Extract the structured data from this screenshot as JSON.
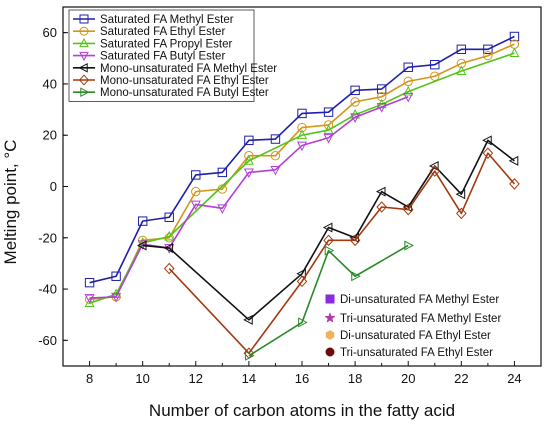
{
  "chart_data": {
    "type": "line",
    "xlabel": "Number of carbon atoms in the fatty acid",
    "ylabel": "Melting point, °C",
    "xlim": [
      7,
      25
    ],
    "ylim": [
      -70,
      70
    ],
    "xticks": [
      8,
      10,
      12,
      14,
      16,
      18,
      20,
      22,
      24
    ],
    "yticks": [
      -60,
      -40,
      -20,
      0,
      20,
      40,
      60
    ],
    "xtick_labels": [
      "8",
      "10",
      "12",
      "14",
      "16",
      "18",
      "20",
      "22",
      "24"
    ],
    "ytick_labels": [
      "-60",
      "-40",
      "-20",
      "0",
      "20",
      "40",
      "60"
    ],
    "grid": false,
    "series": [
      {
        "name": "Saturated FA Methyl Ester",
        "color": "#1f1fa8",
        "marker": "square",
        "points": [
          [
            8,
            -37.5
          ],
          [
            9,
            -35
          ],
          [
            10,
            -13.5
          ],
          [
            11,
            -12
          ],
          [
            12,
            4.5
          ],
          [
            13,
            5.5
          ],
          [
            14,
            18
          ],
          [
            15,
            18.5
          ],
          [
            16,
            28.5
          ],
          [
            17,
            29
          ],
          [
            18,
            37.5
          ],
          [
            19,
            38
          ],
          [
            20,
            46.5
          ],
          [
            21,
            47.5
          ],
          [
            22,
            53.5
          ],
          [
            23,
            53.5
          ],
          [
            24,
            58.5
          ]
        ]
      },
      {
        "name": "Saturated FA Ethyl Ester",
        "color": "#d4951a",
        "marker": "circle",
        "points": [
          [
            8,
            -44
          ],
          [
            9,
            -43
          ],
          [
            10,
            -21
          ],
          [
            11,
            -20
          ],
          [
            12,
            -2
          ],
          [
            13,
            -1
          ],
          [
            14,
            12
          ],
          [
            15,
            12
          ],
          [
            16,
            23
          ],
          [
            17,
            24
          ],
          [
            18,
            33
          ],
          [
            19,
            35
          ],
          [
            20,
            41
          ],
          [
            21,
            43
          ],
          [
            22,
            48
          ],
          [
            23,
            51
          ],
          [
            24,
            55.5
          ]
        ]
      },
      {
        "name": "Saturated FA Propyl Ester",
        "color": "#52c41a",
        "marker": "triangle-up",
        "points": [
          [
            8,
            -45.5
          ],
          [
            9,
            -42
          ],
          [
            10,
            -22
          ],
          [
            11,
            -19.5
          ],
          [
            14,
            10
          ],
          [
            16,
            20
          ],
          [
            17,
            22
          ],
          [
            18,
            28
          ],
          [
            19,
            32
          ],
          [
            20,
            37
          ],
          [
            22,
            45
          ],
          [
            24,
            52
          ]
        ]
      },
      {
        "name": "Saturated FA Butyl Ester",
        "color": "#b23fd6",
        "marker": "triangle-down",
        "points": [
          [
            8,
            -43.5
          ],
          [
            9,
            -43
          ],
          [
            10,
            -22.5
          ],
          [
            11,
            -24
          ],
          [
            12,
            -7
          ],
          [
            13,
            -8.5
          ],
          [
            14,
            5.5
          ],
          [
            15,
            6.5
          ],
          [
            16,
            16
          ],
          [
            17,
            19
          ],
          [
            18,
            27
          ],
          [
            19,
            31
          ],
          [
            20,
            35
          ]
        ]
      },
      {
        "name": "Mono-unsaturated FA Methyl Ester",
        "color": "#111111",
        "marker": "triangle-left",
        "points": [
          [
            10,
            -23
          ],
          [
            11,
            -24
          ],
          [
            14,
            -52
          ],
          [
            16,
            -34
          ],
          [
            17,
            -16
          ],
          [
            18,
            -20
          ],
          [
            19,
            -2
          ],
          [
            20,
            -8
          ],
          [
            21,
            8
          ],
          [
            22,
            -3
          ],
          [
            23,
            18
          ],
          [
            24,
            10
          ]
        ]
      },
      {
        "name": "Mono-unsaturated FA Ethyl Ester",
        "color": "#a33a10",
        "marker": "diamond",
        "points": [
          [
            11,
            -32
          ],
          [
            14,
            -65
          ],
          [
            16,
            -37
          ],
          [
            17,
            -21
          ],
          [
            18,
            -21
          ],
          [
            19,
            -8
          ],
          [
            20,
            -9
          ],
          [
            21,
            6
          ],
          [
            22,
            -10.5
          ],
          [
            23,
            13
          ],
          [
            24,
            1
          ]
        ]
      },
      {
        "name": "Mono-unsaturated FA Butyl Ester",
        "color": "#2a8a2a",
        "marker": "triangle-right",
        "points": [
          [
            14,
            -66
          ],
          [
            16,
            -53
          ],
          [
            17,
            -25
          ],
          [
            18,
            -35
          ],
          [
            20,
            -23
          ]
        ]
      }
    ],
    "scatter_series": [
      {
        "name": "Di-unsaturated FA Methyl Ester",
        "color": "#8a2be2",
        "marker": "square-filled",
        "points": []
      },
      {
        "name": "Tri-unsaturated FA Methyl Ester",
        "color": "#b13aa8",
        "marker": "star-filled",
        "points": []
      },
      {
        "name": "Di-unsaturated FA Ethyl Ester",
        "color": "#f0b25a",
        "marker": "hexagon-filled",
        "points": []
      },
      {
        "name": "Tri-unsaturated FA Ethyl Ester",
        "color": "#6b0d0d",
        "marker": "circle-filled",
        "points": []
      }
    ],
    "legend_placement": "top-left",
    "legend2_placement": "bottom-right"
  }
}
